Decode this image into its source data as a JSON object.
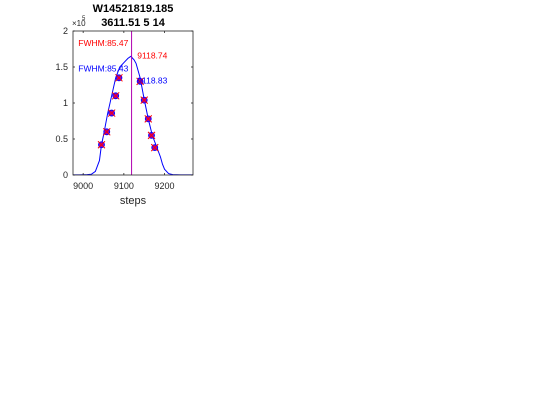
{
  "chart_data": {
    "type": "line",
    "title_lines": [
      "W14521819.185",
      "3611.51 5 14"
    ],
    "xlabel": "steps",
    "ylabel": "",
    "y_exponent_label": "×10",
    "y_exponent": "5",
    "xlim": [
      8975,
      9270
    ],
    "ylim": [
      0,
      2
    ],
    "x_ticks": [
      9000,
      9100,
      9200
    ],
    "x_tick_labels": [
      "9000",
      "9100",
      "9200"
    ],
    "y_ticks": [
      0,
      0.5,
      1,
      1.5,
      2
    ],
    "y_tick_labels": [
      "0",
      "0.5",
      "1",
      "1.5",
      "2"
    ],
    "grid": false,
    "colors": {
      "curve": "#0000ff",
      "red": "#ff0000",
      "vline": "#b000b0",
      "marker_fill": "#8800cc"
    },
    "curve": {
      "x": [
        8975,
        8990,
        9000,
        9010,
        9020,
        9030,
        9040,
        9045,
        9050,
        9060,
        9070,
        9080,
        9090,
        9100,
        9110,
        9115,
        9118,
        9120,
        9125,
        9130,
        9140,
        9150,
        9160,
        9170,
        9180,
        9190,
        9195,
        9200,
        9210,
        9220,
        9240,
        9270
      ],
      "y": [
        0.002,
        0.002,
        0.003,
        0.005,
        0.01,
        0.05,
        0.2,
        0.42,
        0.55,
        0.85,
        1.1,
        1.35,
        1.5,
        1.56,
        1.62,
        1.64,
        1.65,
        1.63,
        1.6,
        1.55,
        1.35,
        1.05,
        0.78,
        0.55,
        0.4,
        0.25,
        0.15,
        0.08,
        0.02,
        0.005,
        0.002,
        0.002
      ]
    },
    "markers": {
      "x": [
        9045,
        9058,
        9070,
        9080,
        9088,
        9140,
        9150,
        9160,
        9168,
        9176
      ],
      "y": [
        0.42,
        0.6,
        0.86,
        1.1,
        1.35,
        1.3,
        1.04,
        0.78,
        0.55,
        0.38
      ]
    },
    "vline_x": 9119,
    "annotations": [
      {
        "text": "FWHM:85.47",
        "color": "#ff0000",
        "x": 8988,
        "y": 1.79
      },
      {
        "text": "9118.74",
        "color": "#ff0000",
        "x": 9133,
        "y": 1.62
      },
      {
        "text": "FWHM:85.43",
        "color": "#0000ff",
        "x": 8988,
        "y": 1.44
      },
      {
        "text": "9118.83",
        "color": "#0000ff",
        "x": 9133,
        "y": 1.27
      }
    ]
  }
}
